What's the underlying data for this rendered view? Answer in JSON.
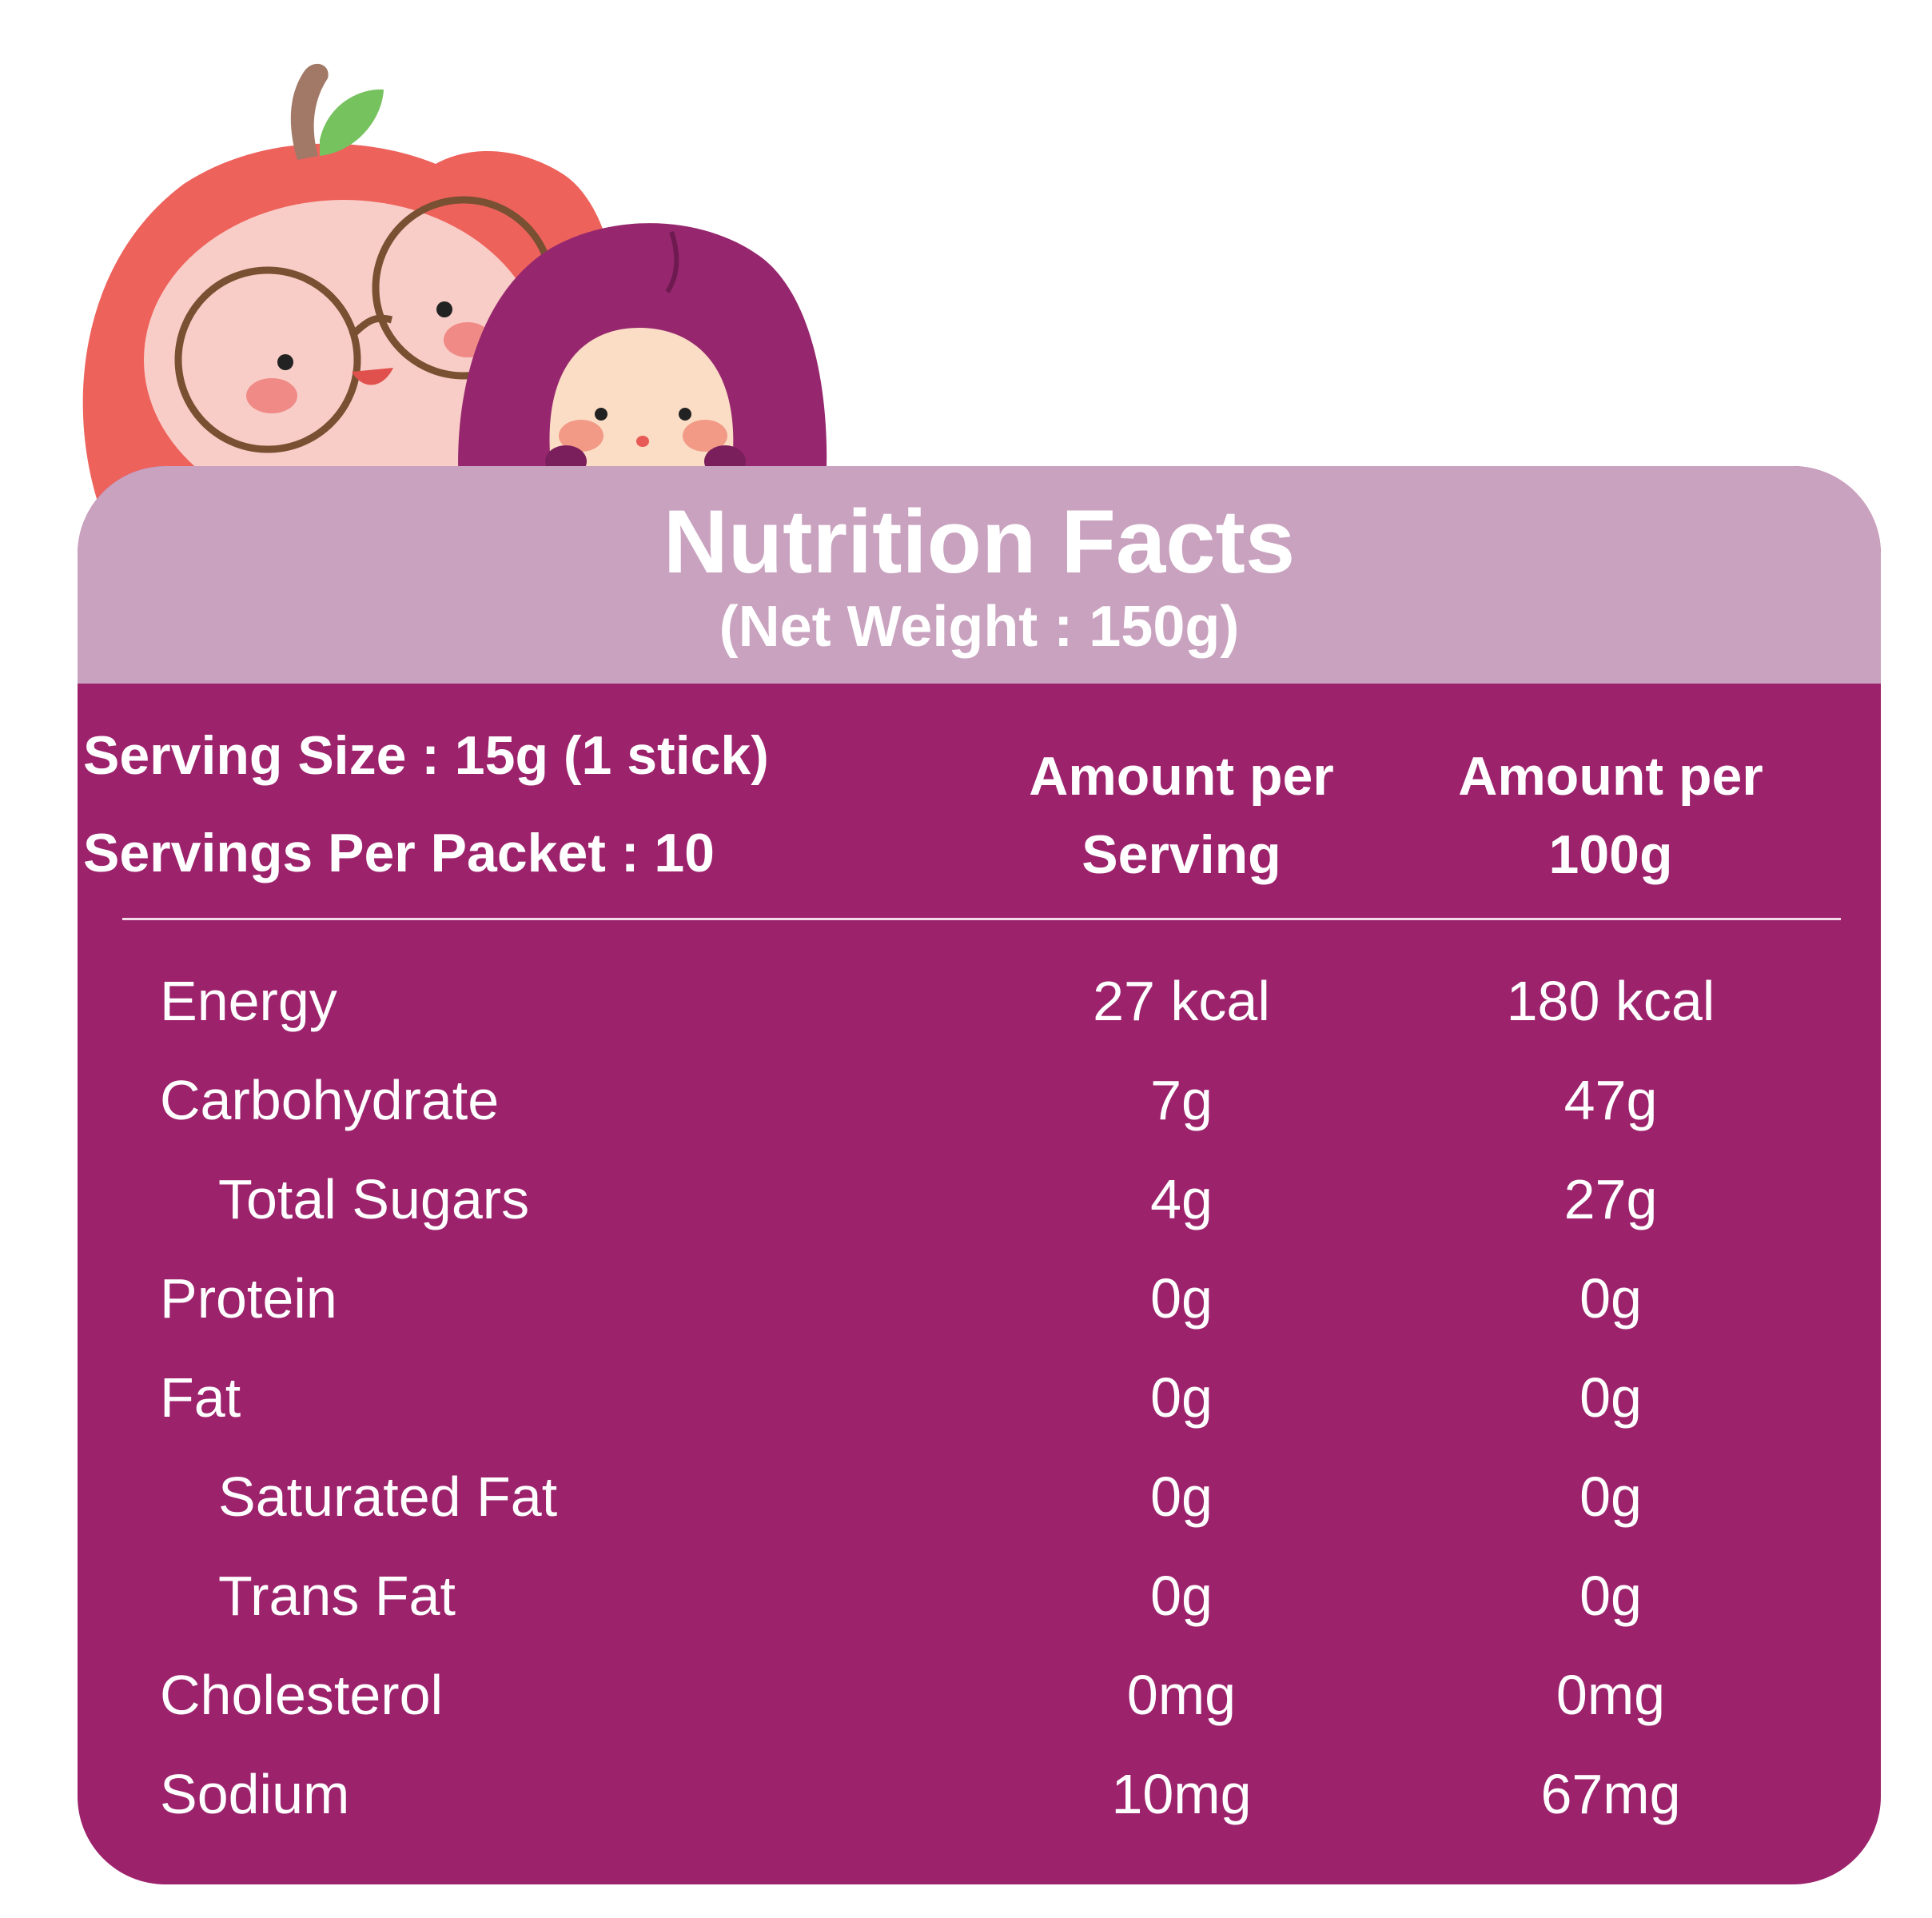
{
  "header": {
    "title": "Nutrition Facts",
    "subtitle": "(Net Weight : 150g)"
  },
  "serving": {
    "size": "Serving Size : 15g (1 stick)",
    "per_packet": "Servings Per Packet : 10"
  },
  "columns": {
    "per_serving": [
      "Amount per",
      "Serving"
    ],
    "per_100g": [
      "Amount per",
      "100g"
    ]
  },
  "nutrients": [
    {
      "name": "Energy",
      "per_serving": "27 kcal",
      "per_100g": "180 kcal"
    },
    {
      "name": "Carbohydrate",
      "per_serving": "7g",
      "per_100g": "47g"
    },
    {
      "name": "Total Sugars",
      "per_serving": "4g",
      "per_100g": "27g"
    },
    {
      "name": "Protein",
      "per_serving": "0g",
      "per_100g": "0g"
    },
    {
      "name": "Fat",
      "per_serving": "0g",
      "per_100g": "0g"
    },
    {
      "name": "Saturated Fat",
      "per_serving": "0g",
      "per_100g": "0g"
    },
    {
      "name": "Trans Fat",
      "per_serving": "0g",
      "per_100g": "0g"
    },
    {
      "name": "Cholesterol",
      "per_serving": "0mg",
      "per_100g": "0mg"
    },
    {
      "name": "Sodium",
      "per_serving": "10mg",
      "per_100g": "67mg"
    }
  ],
  "colors": {
    "card": "#9c226c",
    "header": "#c9a2bf",
    "apple": "#ee625c",
    "plum": "#96276e"
  },
  "icons": [
    "apple-mascot-icon",
    "plum-mascot-icon"
  ]
}
